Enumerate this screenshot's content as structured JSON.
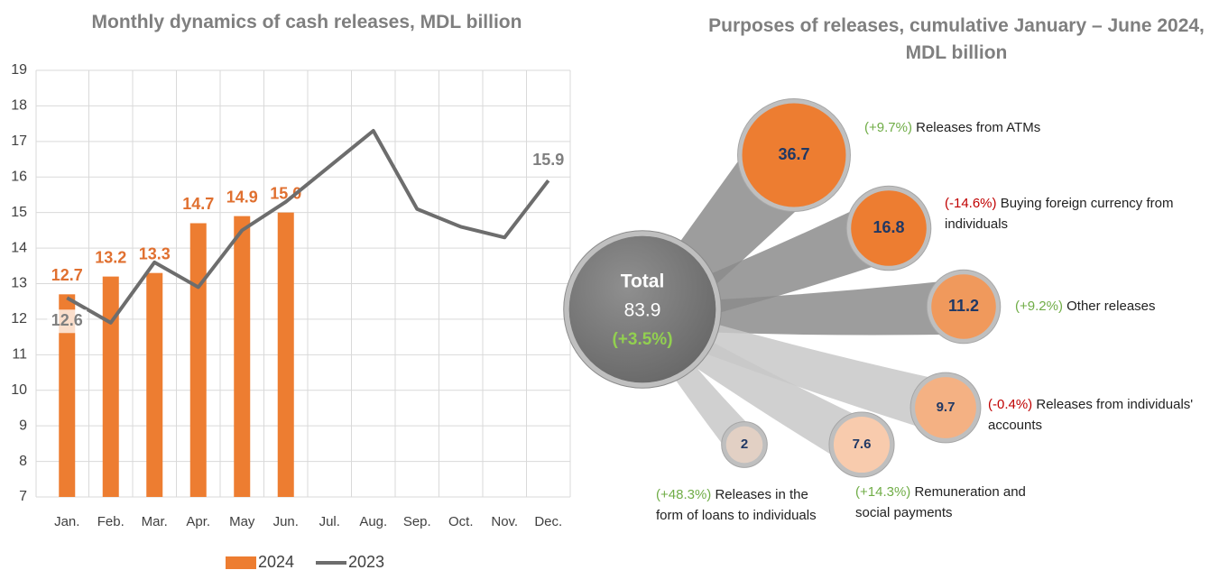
{
  "chart_data": [
    {
      "type": "bar",
      "title": "Monthly dynamics of cash releases, MDL billion",
      "categories": [
        "Jan.",
        "Feb.",
        "Mar.",
        "Apr.",
        "May",
        "Jun.",
        "Jul.",
        "Aug.",
        "Sep.",
        "Oct.",
        "Nov.",
        "Dec."
      ],
      "series": [
        {
          "name": "2024",
          "type": "bar",
          "color": "#ed7d31",
          "values": [
            12.7,
            13.2,
            13.3,
            14.7,
            14.9,
            15.0,
            null,
            null,
            null,
            null,
            null,
            null
          ],
          "value_labels": [
            "12.7",
            "13.2",
            "13.3",
            "14.7",
            "14.9",
            "15.0",
            null,
            null,
            null,
            null,
            null,
            null
          ]
        },
        {
          "name": "2023",
          "type": "line",
          "color": "#6d6d6d",
          "values": [
            12.6,
            11.9,
            13.6,
            12.9,
            14.5,
            15.3,
            16.3,
            17.3,
            15.1,
            14.6,
            14.3,
            15.9
          ],
          "value_labels": [
            "12.6",
            null,
            null,
            null,
            null,
            null,
            null,
            null,
            null,
            null,
            null,
            "15.9"
          ]
        }
      ],
      "ylim": [
        7,
        19
      ],
      "yticks": [
        7,
        8,
        9,
        10,
        11,
        12,
        13,
        14,
        15,
        16,
        17,
        18,
        19
      ],
      "grid": true,
      "legend": "bottom"
    },
    {
      "type": "bubble",
      "title": "Purposes of releases, cumulative January – June 2024, MDL billion",
      "total": {
        "label": "Total",
        "value": 83.9,
        "change": "(+3.5%)",
        "color": "#7f7f7f"
      },
      "items": [
        {
          "value": 36.7,
          "change": "(+9.7%)",
          "label": "Releases from ATMs",
          "color": "#ed7d31"
        },
        {
          "value": 16.8,
          "change": "(-14.6%)",
          "label": "Buying foreign currency from individuals",
          "color": "#ed7d31"
        },
        {
          "value": 11.2,
          "change": "(+9.2%)",
          "label": "Other releases",
          "color": "#f0995c"
        },
        {
          "value": 9.7,
          "change": "(-0.4%)",
          "label": "Releases from individuals' accounts",
          "color": "#f4b183"
        },
        {
          "value": 7.6,
          "change": "(+14.3%)",
          "label": "Remuneration and social payments",
          "color": "#f8cbad"
        },
        {
          "value": 2.0,
          "change": "(+48.3%)",
          "label": "Releases in the form of loans to individuals",
          "color": "#e2d0c4"
        }
      ]
    }
  ]
}
